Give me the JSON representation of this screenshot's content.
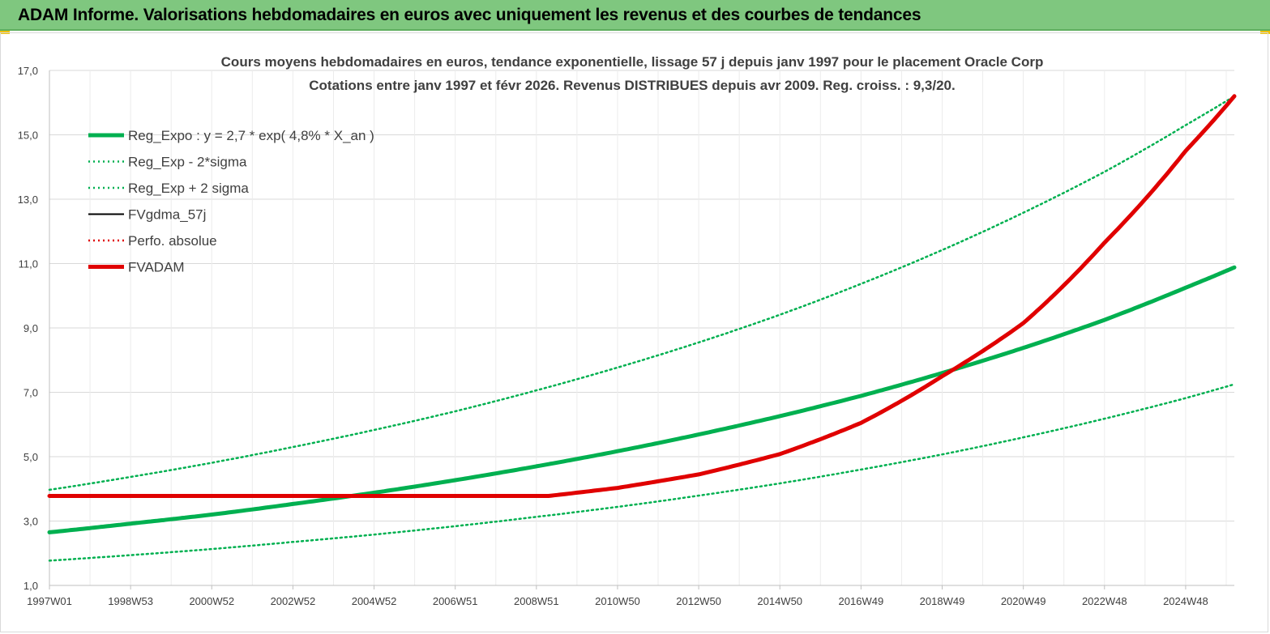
{
  "header": {
    "title": "ADAM Informe. Valorisations hebdomadaires en euros avec uniquement les revenus et des courbes de tendances"
  },
  "colors": {
    "banner": "#7fc77f",
    "green": "#00b050",
    "red": "#e00000",
    "black": "#000000",
    "grid": "#d9d9d9",
    "text": "#404040"
  },
  "chart_data": {
    "type": "line",
    "title": [
      "Cours moyens hebdomadaires en euros, tendance exponentielle, lissage 57 j depuis janv 1997 pour le placement Oracle Corp",
      "Cotations entre janv 1997 et févr 2026. Revenus DISTRIBUES depuis avr 2009. Reg. croiss. : 9,3/20."
    ],
    "xlabel": "",
    "ylabel": "",
    "ylim": [
      1.0,
      17.0
    ],
    "xlim": [
      1997.0,
      2026.2
    ],
    "y_ticks": [
      "1,0",
      "3,0",
      "5,0",
      "7,0",
      "9,0",
      "11,0",
      "13,0",
      "15,0",
      "17,0"
    ],
    "x_ticks": [
      {
        "label": "1997W01",
        "x": 1997.0
      },
      {
        "label": "1998W53",
        "x": 1999.0
      },
      {
        "label": "2000W52",
        "x": 2001.0
      },
      {
        "label": "2002W52",
        "x": 2003.0
      },
      {
        "label": "2004W52",
        "x": 2005.0
      },
      {
        "label": "2006W51",
        "x": 2007.0
      },
      {
        "label": "2008W51",
        "x": 2009.0
      },
      {
        "label": "2010W50",
        "x": 2011.0
      },
      {
        "label": "2012W50",
        "x": 2013.0
      },
      {
        "label": "2014W50",
        "x": 2015.0
      },
      {
        "label": "2016W49",
        "x": 2017.0
      },
      {
        "label": "2018W49",
        "x": 2019.0
      },
      {
        "label": "2020W49",
        "x": 2021.0
      },
      {
        "label": "2022W48",
        "x": 2023.0
      },
      {
        "label": "2024W48",
        "x": 2025.0
      }
    ],
    "grid": true,
    "legend_position": "top-left",
    "series": [
      {
        "name": "Reg_Expo : y = 2,7 * exp( 4,8% *  X_an )",
        "style": "solid-thick",
        "color": "#00b050",
        "points": [
          [
            1997.0,
            2.65
          ],
          [
            1999.0,
            2.92
          ],
          [
            2001.0,
            3.2
          ],
          [
            2003.0,
            3.53
          ],
          [
            2005.0,
            3.88
          ],
          [
            2007.0,
            4.27
          ],
          [
            2009.0,
            4.7
          ],
          [
            2011.0,
            5.17
          ],
          [
            2013.0,
            5.69
          ],
          [
            2015.0,
            6.26
          ],
          [
            2017.0,
            6.89
          ],
          [
            2019.0,
            7.6
          ],
          [
            2021.0,
            8.38
          ],
          [
            2023.0,
            9.25
          ],
          [
            2025.0,
            10.25
          ],
          [
            2026.2,
            10.88
          ]
        ]
      },
      {
        "name": "Reg_Exp - 2*sigma",
        "style": "dotted",
        "color": "#00b050",
        "points": [
          [
            1997.0,
            1.77
          ],
          [
            1999.0,
            1.94
          ],
          [
            2001.0,
            2.13
          ],
          [
            2003.0,
            2.35
          ],
          [
            2005.0,
            2.58
          ],
          [
            2007.0,
            2.84
          ],
          [
            2009.0,
            3.13
          ],
          [
            2011.0,
            3.44
          ],
          [
            2013.0,
            3.79
          ],
          [
            2015.0,
            4.17
          ],
          [
            2017.0,
            4.6
          ],
          [
            2019.0,
            5.07
          ],
          [
            2021.0,
            5.6
          ],
          [
            2023.0,
            6.18
          ],
          [
            2025.0,
            6.82
          ],
          [
            2026.2,
            7.25
          ]
        ]
      },
      {
        "name": "Reg_Exp + 2 sigma",
        "style": "dotted",
        "color": "#00b050",
        "points": [
          [
            1997.0,
            3.97
          ],
          [
            1999.0,
            4.37
          ],
          [
            2001.0,
            4.81
          ],
          [
            2003.0,
            5.3
          ],
          [
            2005.0,
            5.83
          ],
          [
            2007.0,
            6.41
          ],
          [
            2009.0,
            7.06
          ],
          [
            2011.0,
            7.77
          ],
          [
            2013.0,
            8.55
          ],
          [
            2015.0,
            9.41
          ],
          [
            2017.0,
            10.37
          ],
          [
            2019.0,
            11.42
          ],
          [
            2021.0,
            12.58
          ],
          [
            2023.0,
            13.85
          ],
          [
            2025.0,
            15.3
          ],
          [
            2026.2,
            16.2
          ]
        ]
      },
      {
        "name": "FVgdma_57j",
        "style": "solid",
        "color": "#000000",
        "points": [
          [
            1997.0,
            3.78
          ],
          [
            2009.3,
            3.78
          ],
          [
            2011.0,
            4.03
          ],
          [
            2013.0,
            4.45
          ],
          [
            2015.0,
            5.08
          ],
          [
            2017.0,
            6.05
          ],
          [
            2019.0,
            7.5
          ],
          [
            2021.0,
            9.15
          ],
          [
            2023.0,
            11.65
          ],
          [
            2025.0,
            14.5
          ],
          [
            2026.2,
            16.2
          ]
        ]
      },
      {
        "name": "Perfo. absolue",
        "style": "dotted",
        "color": "#e00000",
        "points": [
          [
            1997.0,
            3.78
          ],
          [
            2009.3,
            3.78
          ],
          [
            2011.0,
            4.03
          ],
          [
            2013.0,
            4.45
          ],
          [
            2015.0,
            5.08
          ],
          [
            2017.0,
            6.05
          ],
          [
            2019.0,
            7.5
          ],
          [
            2021.0,
            9.15
          ],
          [
            2023.0,
            11.65
          ],
          [
            2025.0,
            14.5
          ],
          [
            2026.2,
            16.2
          ]
        ]
      },
      {
        "name": "FVADAM",
        "style": "solid-thick",
        "color": "#e00000",
        "points": [
          [
            1997.0,
            3.78
          ],
          [
            2009.3,
            3.78
          ],
          [
            2011.0,
            4.03
          ],
          [
            2013.0,
            4.45
          ],
          [
            2015.0,
            5.08
          ],
          [
            2017.0,
            6.05
          ],
          [
            2019.0,
            7.5
          ],
          [
            2021.0,
            9.15
          ],
          [
            2023.0,
            11.65
          ],
          [
            2025.0,
            14.5
          ],
          [
            2026.2,
            16.2
          ]
        ]
      }
    ]
  }
}
